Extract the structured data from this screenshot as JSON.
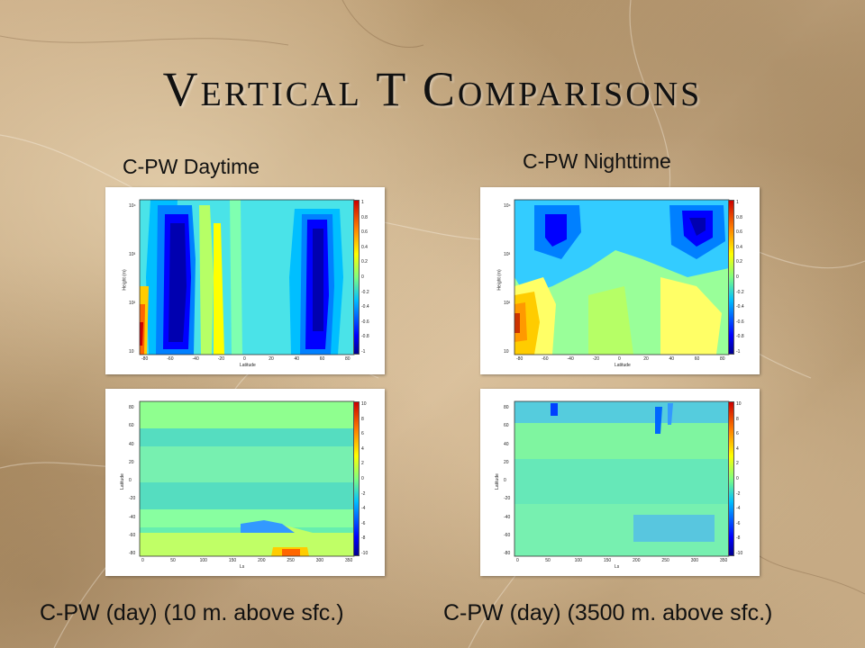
{
  "slide": {
    "title": "Vertical T Comparisons",
    "label_top_left": "C-PW Daytime",
    "label_top_right": "C-PW Nighttime",
    "label_bottom_left": "C-PW (day) (10 m. above sfc.)",
    "label_bottom_right": "C-PW (day) (3500 m. above sfc.)"
  },
  "panels": {
    "top": {
      "ylabel": "Height (m)",
      "xlabel": "Latitude",
      "yticks": [
        "10⁴",
        "10³",
        "10²",
        "10"
      ],
      "xticks": [
        "-80",
        "-60",
        "-40",
        "-20",
        "0",
        "20",
        "40",
        "60",
        "80"
      ],
      "cbar_ticks": [
        "1",
        "0.8",
        "0.6",
        "0.4",
        "0.2",
        "0",
        "-0.2",
        "-0.4",
        "-0.6",
        "-0.8",
        "-1"
      ]
    },
    "bottom": {
      "ylabel": "Latitude",
      "xlabel": "Ls",
      "yticks": [
        "80",
        "60",
        "40",
        "20",
        "0",
        "-20",
        "-40",
        "-60",
        "-80"
      ],
      "xticks": [
        "0",
        "50",
        "100",
        "150",
        "200",
        "250",
        "300",
        "350"
      ],
      "cbar_ticks": [
        "10",
        "8",
        "6",
        "4",
        "2",
        "0",
        "-2",
        "-4",
        "-6",
        "-8",
        "-10"
      ]
    }
  }
}
